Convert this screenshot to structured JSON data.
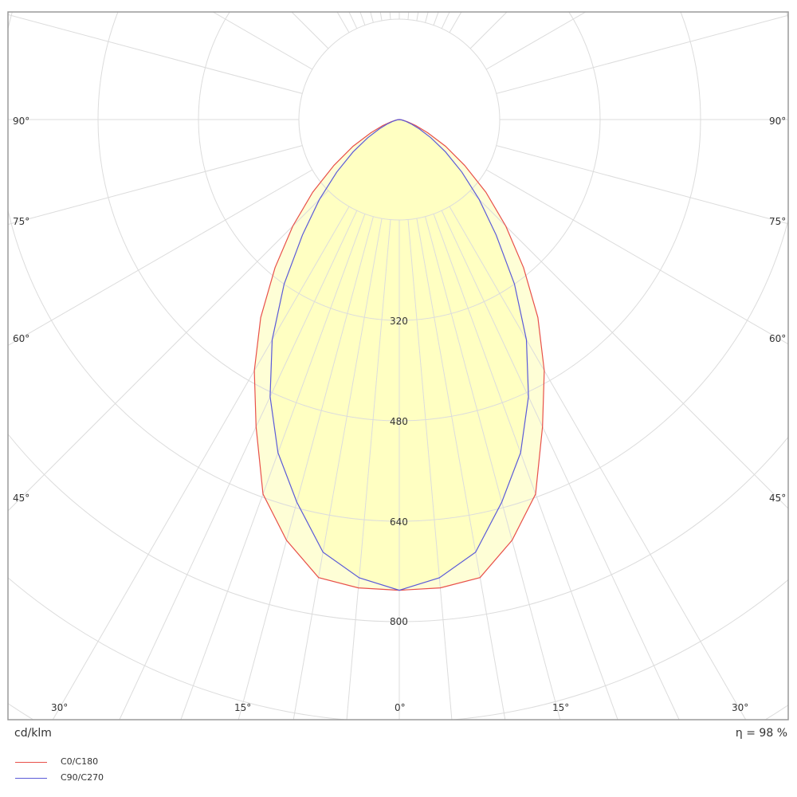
{
  "chart_data": {
    "type": "polar",
    "unit_label": "cd/klm",
    "efficiency_label": "η = 98 %",
    "radial_tick_labels": [
      "320",
      "480",
      "640",
      "800"
    ],
    "radial_step": 160,
    "angle_labels_left": [
      "90°",
      "75°",
      "60°",
      "45°"
    ],
    "angle_labels_right": [
      "90°",
      "75°",
      "60°",
      "45°"
    ],
    "angle_labels_bottom": [
      "30°",
      "15°",
      "0°",
      "15°",
      "30°"
    ],
    "angles_deg": [
      0,
      5,
      10,
      15,
      20,
      25,
      30,
      35,
      40,
      45,
      50,
      55,
      60,
      65,
      70,
      75,
      80,
      85,
      90
    ],
    "series": [
      {
        "name": "C0/C180",
        "color": "#e8504a",
        "fill": "#fefed6",
        "values": [
          750,
          749,
          741,
          694,
          635,
          540,
          462,
          385,
          308,
          240,
          180,
          127,
          85,
          50,
          28,
          14,
          6,
          2,
          0
        ]
      },
      {
        "name": "C90/C270",
        "color": "#5a5ad8",
        "fill": "#ffffc2",
        "values": [
          750,
          733,
          700,
          631,
          565,
          487,
          405,
          320,
          240,
          180,
          130,
          90,
          58,
          35,
          20,
          10,
          4,
          1,
          0
        ]
      }
    ],
    "grid": true,
    "legend_position": "bottom-left"
  }
}
